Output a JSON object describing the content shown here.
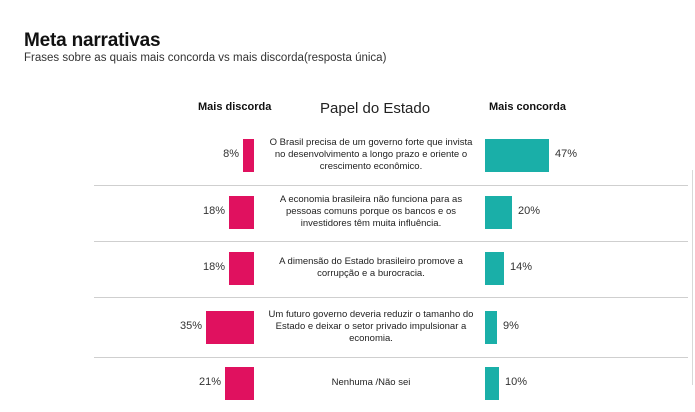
{
  "title": "Meta narrativas",
  "subtitle": "Frases sobre as quais mais concorda vs mais discorda(resposta única)",
  "chart_data": {
    "type": "bar",
    "title": "Papel do Estado",
    "left_label": "Mais discorda",
    "right_label": "Mais concorda",
    "colors": {
      "left": "#e0115f",
      "right": "#1aafa8"
    },
    "categories": [
      "O Brasil precisa de um governo forte que invista no desenvolvimento a longo prazo e oriente o crescimento econômico.",
      "A economia brasileira não funciona para as pessoas comuns porque os bancos e os investidores têm muita influência.",
      "A dimensão do Estado brasileiro promove a corrupção e a burocracia.",
      "Um futuro governo deveria reduzir o tamanho do Estado e deixar o setor privado impulsionar a economia.",
      "Nenhuma /Não sei"
    ],
    "series": [
      {
        "name": "Mais discorda",
        "values": [
          8,
          18,
          18,
          35,
          21
        ]
      },
      {
        "name": "Mais concorda",
        "values": [
          47,
          20,
          14,
          9,
          10
        ]
      }
    ],
    "value_labels_left": [
      "8%",
      "18%",
      "18%",
      "35%",
      "21%"
    ],
    "value_labels_right": [
      "47%",
      "20%",
      "14%",
      "9%",
      "10%"
    ]
  }
}
